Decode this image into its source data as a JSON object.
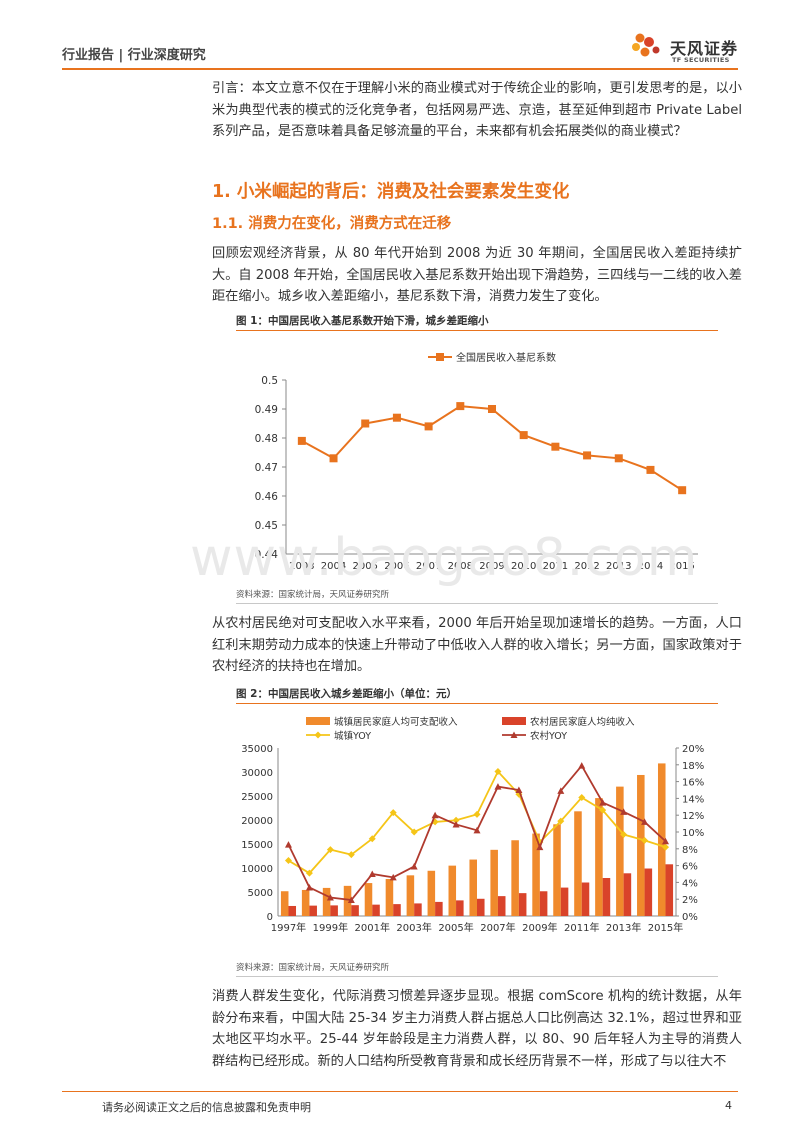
{
  "header": {
    "left": "行业报告 | 行业深度研究",
    "logo_name": "天风证券",
    "logo_sub": "TF SECURITIES"
  },
  "intro": "引言：本文立意不仅在于理解小米的商业模式对于传统企业的影响，更引发思考的是，以小米为典型代表的模式的泛化竞争者，包括网易严选、京造，甚至延伸到超市 Private Label 系列产品，是否意味着具备足够流量的平台，未来都有机会拓展类似的商业模式？",
  "section_title": "1. 小米崛起的背后：消费及社会要素发生变化",
  "subsection_title": "1.1. 消费力在变化，消费方式在迁移",
  "para1": "回顾宏观经济背景，从 80 年代开始到 2008 为近 30 年期间，全国居民收入差距持续扩大。自 2008 年开始，全国居民收入基尼系数开始出现下滑趋势，三四线与一二线的收入差距在缩小。城乡收入差距缩小，基尼系数下滑，消费力发生了变化。",
  "fig1": {
    "title": "图 1：中国居民收入基尼系数开始下滑，城乡差距缩小",
    "source": "资料来源：国家统计局，天风证券研究所"
  },
  "para2": "从农村居民绝对可支配收入水平来看，2000 年后开始呈现加速增长的趋势。一方面，人口红利末期劳动力成本的快速上升带动了中低收入人群的收入增长；另一方面，国家政策对于农村经济的扶持也在增加。",
  "fig2": {
    "title": "图 2：中国居民收入城乡差距缩小（单位：元）",
    "source": "资料来源：国家统计局，天风证券研究所"
  },
  "para3": "消费人群发生变化，代际消费习惯差异逐步显现。根据 comScore 机构的统计数据，从年龄分布来看，中国大陆 25-34 岁主力消费人群占据总人口比例高达 32.1%，超过世界和亚太地区平均水平。25-44 岁年龄段是主力消费人群，以 80、90 后年轻人为主导的消费人群结构已经形成。新的人口结构所受教育背景和成长经历背景不一样，形成了与以往大不",
  "watermark": "www.baogao8.com",
  "footer": {
    "disclaimer": "请务必阅读正文之后的信息披露和免责申明",
    "page": "4"
  },
  "colors": {
    "accent": "#e8731e",
    "bar_urban": "#f08a2c",
    "bar_rural": "#d9432a",
    "line_urban": "#f5c518",
    "line_rural": "#b03a2e"
  },
  "chart_data": [
    {
      "type": "line",
      "title": "",
      "x": [
        "2003",
        "2004",
        "2005",
        "2006",
        "2007",
        "2008",
        "2009",
        "2010",
        "2011",
        "2012",
        "2013",
        "2014",
        "2015"
      ],
      "series": [
        {
          "name": "全国居民收入基尼系数",
          "values": [
            0.479,
            0.473,
            0.485,
            0.487,
            0.484,
            0.491,
            0.49,
            0.481,
            0.477,
            0.474,
            0.473,
            0.469,
            0.462
          ]
        }
      ],
      "ylim": [
        0.44,
        0.5
      ],
      "yticks": [
        "0.44",
        "0.45",
        "0.46",
        "0.47",
        "0.48",
        "0.49",
        "0.5"
      ],
      "legend": "top"
    },
    {
      "type": "bar",
      "x": [
        "1997",
        "1998",
        "1999",
        "2000",
        "2001",
        "2002",
        "2003",
        "2004",
        "2005",
        "2006",
        "2007",
        "2008",
        "2009",
        "2010",
        "2011",
        "2012",
        "2013",
        "2014",
        "2015"
      ],
      "xtick_labels": [
        "1997年",
        "1999年",
        "2001年",
        "2003年",
        "2005年",
        "2007年",
        "2009年",
        "2011年",
        "2013年",
        "2015年"
      ],
      "series": [
        {
          "name": "城镇居民家庭人均可支配收入",
          "kind": "bar",
          "axis": "left",
          "values": [
            5160,
            5425,
            5854,
            6280,
            6860,
            7703,
            8472,
            9422,
            10493,
            11759,
            13786,
            15781,
            17175,
            19109,
            21810,
            24565,
            26955,
            29381,
            31790
          ]
        },
        {
          "name": "农村居民家庭人均纯收入",
          "kind": "bar",
          "axis": "left",
          "values": [
            2090,
            2162,
            2210,
            2253,
            2366,
            2476,
            2622,
            2936,
            3255,
            3587,
            4140,
            4761,
            5153,
            5919,
            6977,
            7917,
            8896,
            9892,
            10772
          ]
        },
        {
          "name": "城镇YOY",
          "kind": "line",
          "axis": "right",
          "values": [
            6.6,
            5.1,
            7.9,
            7.3,
            9.2,
            12.3,
            10.0,
            11.2,
            11.4,
            12.1,
            17.2,
            14.5,
            8.8,
            11.3,
            14.1,
            12.6,
            9.7,
            9.0,
            8.2
          ]
        },
        {
          "name": "农村YOY",
          "kind": "line",
          "axis": "right",
          "values": [
            8.5,
            3.4,
            2.2,
            1.9,
            5.0,
            4.6,
            5.9,
            12.0,
            10.9,
            10.2,
            15.4,
            15.0,
            8.2,
            14.9,
            17.9,
            13.5,
            12.4,
            11.2,
            8.9
          ]
        }
      ],
      "ylim_left": [
        0,
        35000
      ],
      "yticks_left": [
        "0",
        "5000",
        "10000",
        "15000",
        "20000",
        "25000",
        "30000",
        "35000"
      ],
      "ylim_right": [
        0,
        20
      ],
      "yticks_right": [
        "0%",
        "2%",
        "4%",
        "6%",
        "8%",
        "10%",
        "12%",
        "14%",
        "16%",
        "18%",
        "20%"
      ],
      "legend": "top"
    }
  ]
}
